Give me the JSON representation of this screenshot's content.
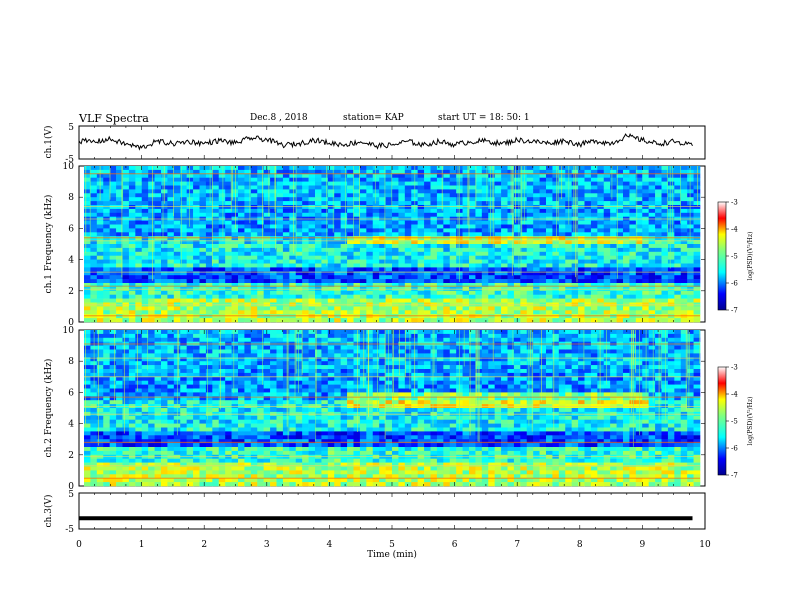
{
  "header": {
    "title": "VLF Spectra",
    "date": "Dec.8 , 2018",
    "station": "station= KAP",
    "start": "start UT = 18: 50: 1"
  },
  "chart_data": [
    {
      "type": "line",
      "ylabel": "ch.1(V)",
      "ylim": [
        -5,
        5
      ],
      "yticks": [
        "5",
        "-5"
      ],
      "x": [
        0,
        0.25,
        0.5,
        0.75,
        1,
        1.25,
        1.5,
        1.75,
        2,
        2.25,
        2.5,
        2.75,
        3,
        3.25,
        3.5,
        3.75,
        4,
        4.25,
        4.5,
        4.75,
        5,
        5.25,
        5.5,
        5.75,
        6,
        6.25,
        6.5,
        6.75,
        7,
        7.25,
        7.5,
        7.75,
        8,
        8.25,
        8.5,
        8.75,
        9,
        9.25,
        9.5,
        9.8
      ],
      "values": [
        0.5,
        0.2,
        1.0,
        -0.5,
        -1.6,
        0.4,
        -0.4,
        0.3,
        -0.3,
        0.6,
        -0.2,
        1.4,
        0.9,
        -0.8,
        -0.4,
        0.8,
        -0.2,
        -0.6,
        0.2,
        -1.0,
        -0.8,
        0.4,
        -0.8,
        0.3,
        -0.6,
        0.2,
        0.5,
        -0.4,
        0.8,
        0.3,
        -0.2,
        0.6,
        -0.6,
        0.5,
        -0.3,
        2.0,
        0.7,
        -0.4,
        0.3,
        -1.0
      ]
    },
    {
      "type": "heatmap",
      "ylabel": "ch.1 Frequency (kHz)",
      "xlim": [
        0,
        10
      ],
      "ylim": [
        0,
        10
      ],
      "yticks": [
        "0",
        "2",
        "4",
        "6",
        "8",
        "10"
      ],
      "colorbar_label": "log(PSD)(V²/Hz)",
      "colorbar_ticks": [
        "-3",
        "-4",
        "-5",
        "-6",
        "-7"
      ],
      "colorscale": "jet"
    },
    {
      "type": "heatmap",
      "ylabel": "ch.2 Frequency (kHz)",
      "xlim": [
        0,
        10
      ],
      "ylim": [
        0,
        10
      ],
      "yticks": [
        "0",
        "2",
        "4",
        "6",
        "8",
        "10"
      ],
      "colorbar_label": "log(PSD)(V²/Hz)",
      "colorbar_ticks": [
        "-3",
        "-4",
        "-5",
        "-6",
        "-7"
      ],
      "colorscale": "jet"
    },
    {
      "type": "line",
      "ylabel": "ch.3(V)",
      "ylim": [
        -5,
        5
      ],
      "yticks": [
        "5",
        "-5"
      ],
      "x": [
        0,
        9.8
      ],
      "values": [
        -2,
        -2
      ]
    }
  ],
  "x_axis": {
    "label": "Time (min)",
    "ticks": [
      "0",
      "1",
      "2",
      "3",
      "4",
      "5",
      "6",
      "7",
      "8",
      "9",
      "10"
    ]
  }
}
